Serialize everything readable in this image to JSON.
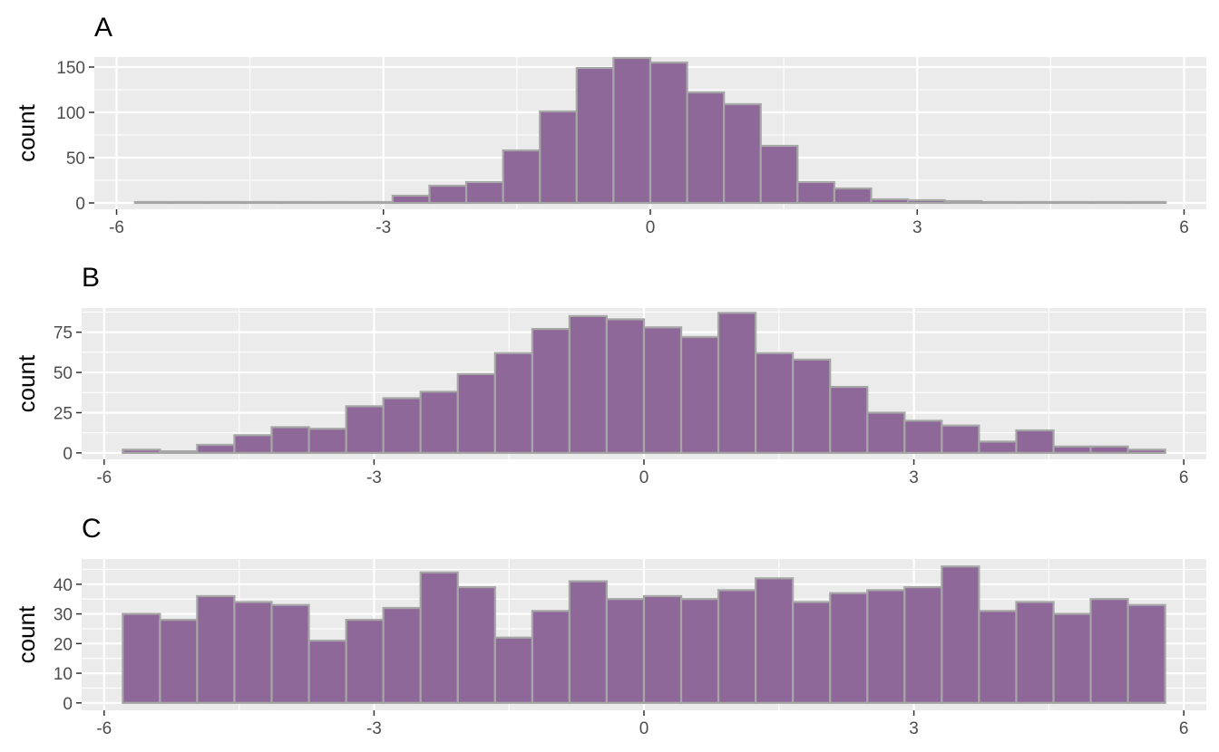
{
  "colors": {
    "panel_background": "#EBEBEB",
    "grid_major": "#FFFFFF",
    "bar_fill": "#8E6898",
    "bar_outline": "#A6A6A6",
    "tick_text": "#4D4D4D",
    "tick_mark": "#333333"
  },
  "chart_data": [
    {
      "type": "bar",
      "panel_tag": "A",
      "ylabel": "count",
      "xlabel": "",
      "xlim": [
        -6.25,
        6.25
      ],
      "ylim": [
        -7,
        161
      ],
      "x_ticks": [
        -6,
        -3,
        0,
        3,
        6
      ],
      "x_tick_labels": [
        "-6",
        "-3",
        "0",
        "3",
        "6"
      ],
      "y_ticks": [
        0,
        50,
        100,
        150
      ],
      "y_tick_labels": [
        "0",
        "50",
        "100",
        "150"
      ],
      "bin_width": 0.414,
      "bin_centers": [
        -5.586,
        -5.172,
        -4.759,
        -4.345,
        -3.931,
        -3.517,
        -3.103,
        -2.69,
        -2.276,
        -1.862,
        -1.448,
        -1.034,
        -0.621,
        -0.207,
        0.207,
        0.621,
        1.034,
        1.448,
        1.862,
        2.276,
        2.69,
        3.103,
        3.517,
        3.931,
        4.345,
        4.759,
        5.172,
        5.586
      ],
      "counts": [
        1,
        1,
        1,
        1,
        1,
        1,
        1,
        8,
        19,
        23,
        58,
        101,
        149,
        160,
        155,
        122,
        109,
        63,
        23,
        16,
        4,
        3,
        2,
        1,
        1,
        1,
        1,
        1
      ],
      "grid": true
    },
    {
      "type": "bar",
      "panel_tag": "B",
      "ylabel": "count",
      "xlabel": "",
      "xlim": [
        -6.25,
        6.25
      ],
      "ylim": [
        -4,
        90
      ],
      "x_ticks": [
        -6,
        -3,
        0,
        3,
        6
      ],
      "x_tick_labels": [
        "-6",
        "-3",
        "0",
        "3",
        "6"
      ],
      "y_ticks": [
        0,
        25,
        50,
        75
      ],
      "y_tick_labels": [
        "0",
        "25",
        "50",
        "75"
      ],
      "bin_width": 0.414,
      "bin_centers": [
        -5.586,
        -5.172,
        -4.759,
        -4.345,
        -3.931,
        -3.517,
        -3.103,
        -2.69,
        -2.276,
        -1.862,
        -1.448,
        -1.034,
        -0.621,
        -0.207,
        0.207,
        0.621,
        1.034,
        1.448,
        1.862,
        2.276,
        2.69,
        3.103,
        3.517,
        3.931,
        4.345,
        4.759,
        5.172,
        5.586
      ],
      "counts": [
        2,
        1,
        5,
        11,
        16,
        15,
        29,
        34,
        38,
        49,
        62,
        77,
        85,
        83,
        78,
        72,
        87,
        62,
        58,
        41,
        25,
        20,
        17,
        7,
        14,
        4,
        4,
        2
      ],
      "grid": true
    },
    {
      "type": "bar",
      "panel_tag": "C",
      "ylabel": "count",
      "xlabel": "",
      "xlim": [
        -6.25,
        6.25
      ],
      "ylim": [
        -2.5,
        48.5
      ],
      "x_ticks": [
        -6,
        -3,
        0,
        3,
        6
      ],
      "x_tick_labels": [
        "-6",
        "-3",
        "0",
        "3",
        "6"
      ],
      "y_ticks": [
        0,
        10,
        20,
        30,
        40
      ],
      "y_tick_labels": [
        "0",
        "10",
        "20",
        "30",
        "40"
      ],
      "bin_width": 0.414,
      "bin_centers": [
        -5.586,
        -5.172,
        -4.759,
        -4.345,
        -3.931,
        -3.517,
        -3.103,
        -2.69,
        -2.276,
        -1.862,
        -1.448,
        -1.034,
        -0.621,
        -0.207,
        0.207,
        0.621,
        1.034,
        1.448,
        1.862,
        2.276,
        2.69,
        3.103,
        3.517,
        3.931,
        4.345,
        4.759,
        5.172,
        5.586
      ],
      "counts": [
        30,
        28,
        36,
        34,
        33,
        21,
        28,
        32,
        44,
        39,
        22,
        31,
        41,
        35,
        36,
        35,
        38,
        42,
        34,
        37,
        38,
        39,
        46,
        31,
        34,
        30,
        35,
        33
      ],
      "grid": true
    }
  ]
}
